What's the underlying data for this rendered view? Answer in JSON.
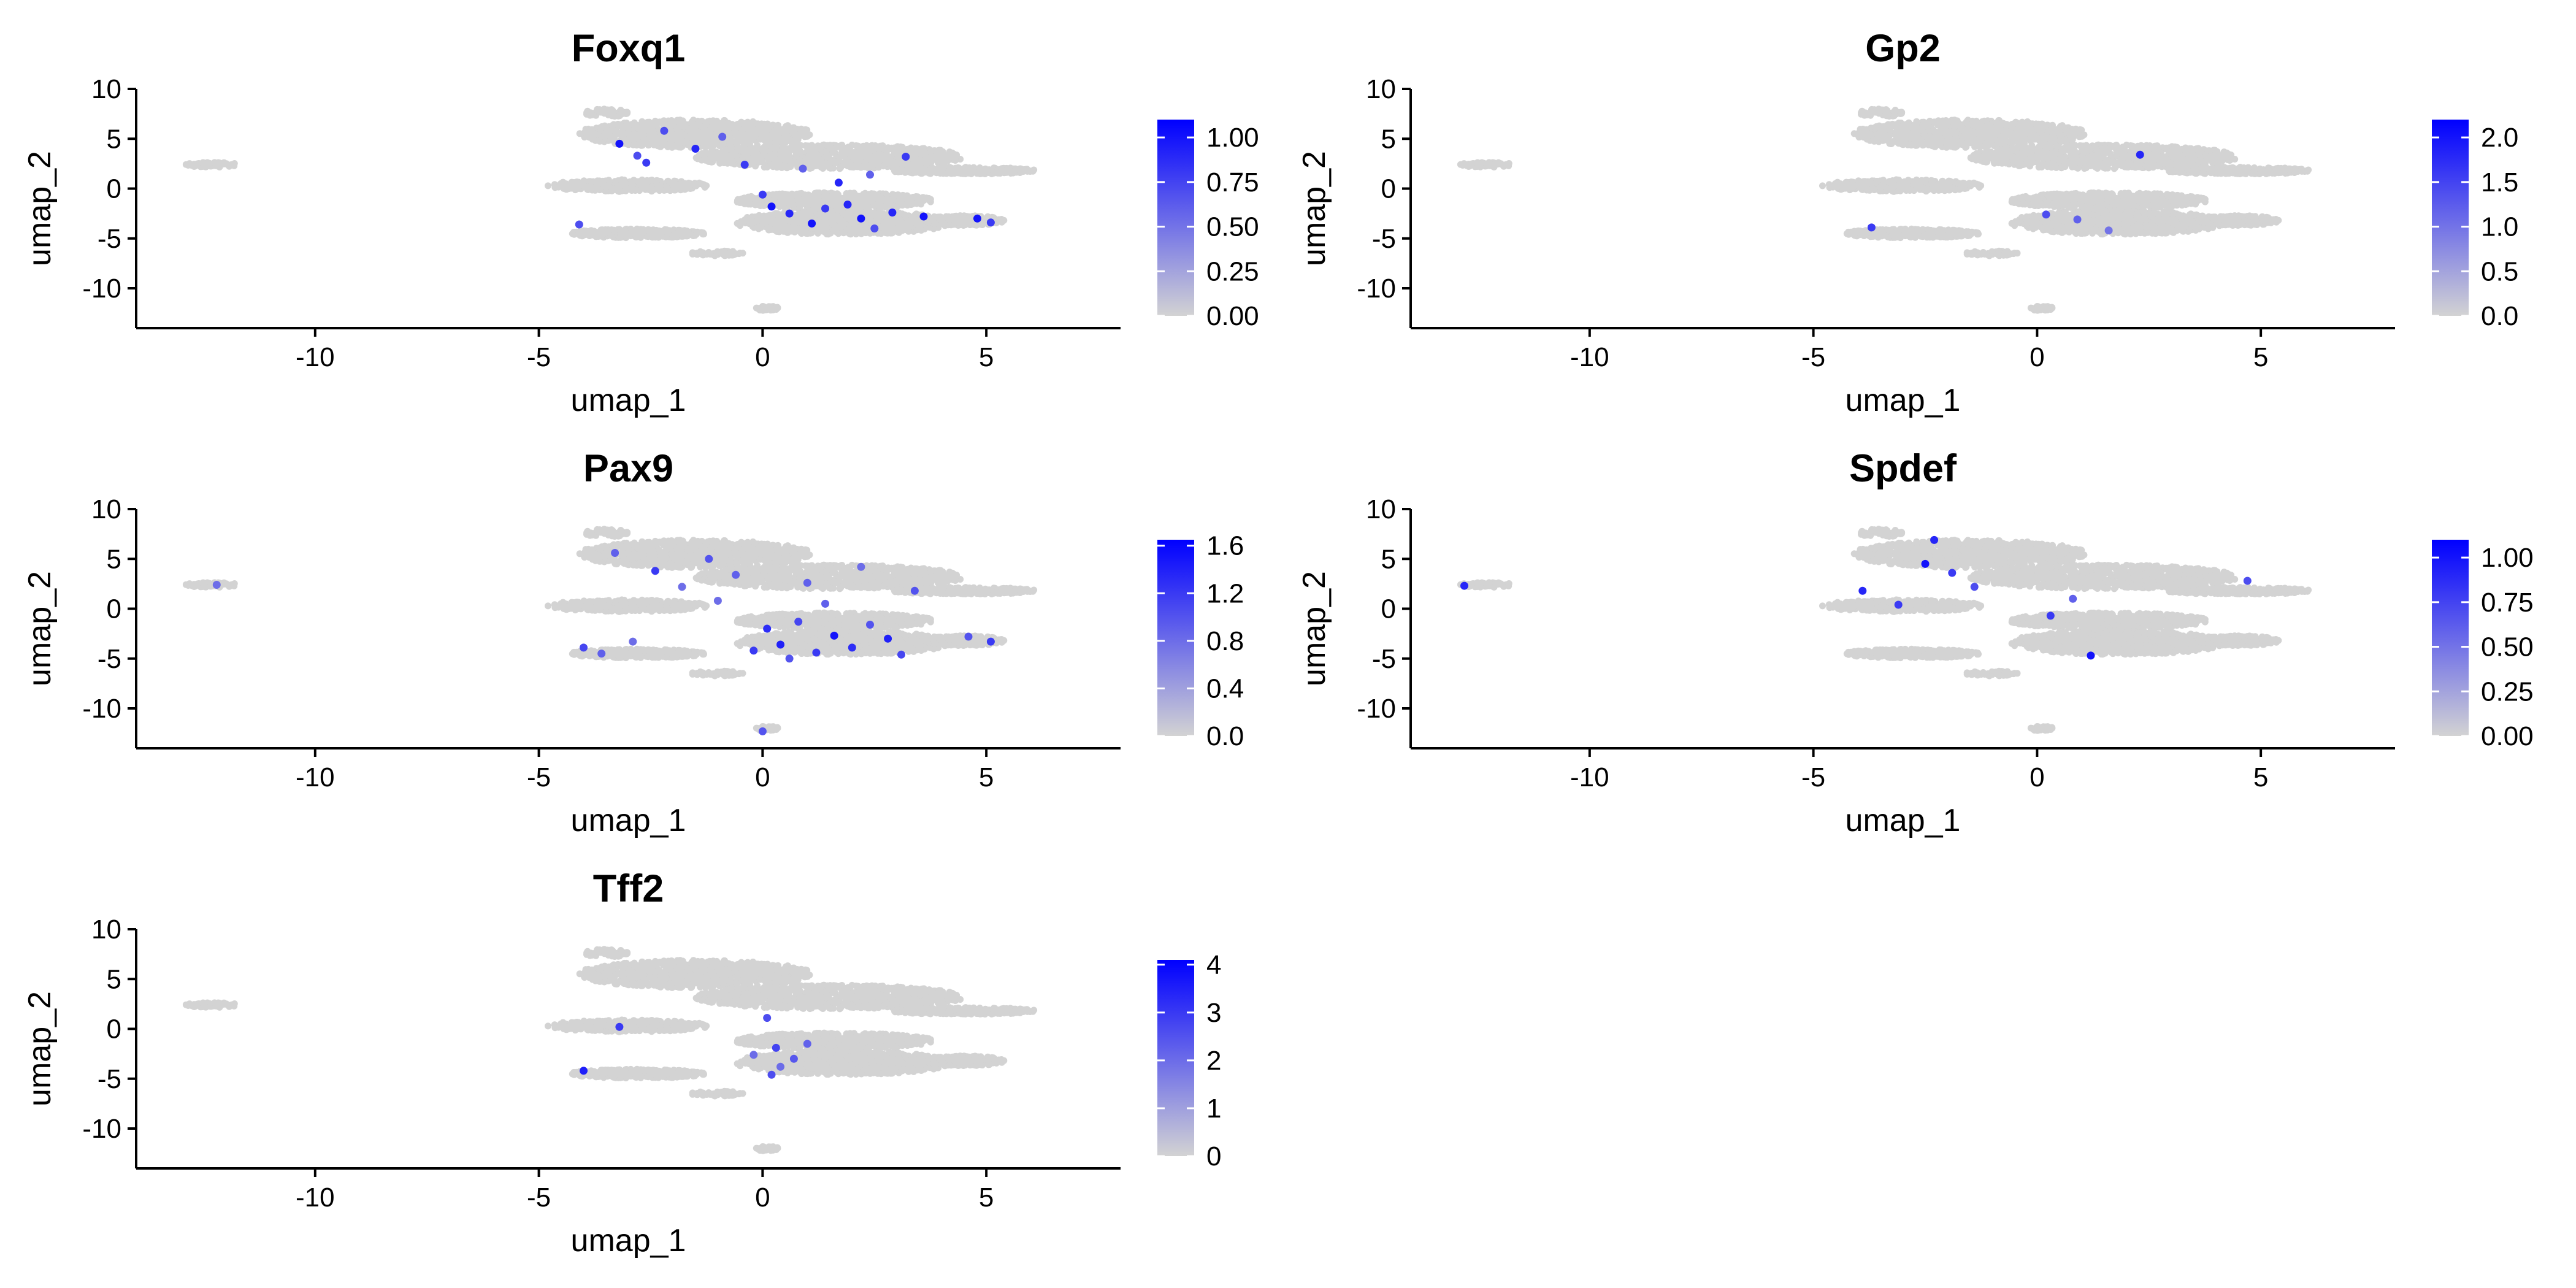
{
  "chart_data": [
    {
      "type": "scatter",
      "title": "Foxq1",
      "xlabel": "umap_1",
      "ylabel": "umap_2",
      "xlim": [
        -14,
        8
      ],
      "ylim": [
        -14,
        10
      ],
      "x_ticks": [
        "-10",
        "-5",
        "0",
        "5"
      ],
      "y_ticks": [
        "10",
        "5",
        "0",
        "-5",
        "-10"
      ],
      "legend": {
        "position": "right",
        "low_color": "#d3d3d3",
        "high_color": "#0000ff",
        "min": 0,
        "max": 1.1,
        "ticks": [
          "1.00",
          "0.75",
          "0.50",
          "0.25",
          "0.00"
        ]
      },
      "highlights": [
        [
          -3.2,
          4.5,
          1.0
        ],
        [
          -2.6,
          2.6,
          0.8
        ],
        [
          -2.2,
          5.8,
          0.7
        ],
        [
          -1.5,
          4.0,
          0.9
        ],
        [
          -0.9,
          5.2,
          0.6
        ],
        [
          -0.4,
          2.4,
          0.8
        ],
        [
          0.2,
          -1.8,
          1.0
        ],
        [
          0.6,
          -2.5,
          0.9
        ],
        [
          1.1,
          -3.5,
          1.0
        ],
        [
          1.4,
          -2.0,
          0.8
        ],
        [
          1.9,
          -1.6,
          0.9
        ],
        [
          2.2,
          -3.0,
          1.0
        ],
        [
          2.5,
          -4.0,
          0.7
        ],
        [
          2.9,
          -2.4,
          0.9
        ],
        [
          3.2,
          3.2,
          0.8
        ],
        [
          4.8,
          -3.0,
          1.0
        ],
        [
          5.1,
          -3.4,
          0.8
        ],
        [
          -4.1,
          -3.6,
          0.7
        ],
        [
          0.9,
          2.0,
          0.6
        ],
        [
          1.7,
          0.6,
          0.9
        ],
        [
          -2.8,
          3.3,
          0.7
        ],
        [
          2.4,
          1.4,
          0.6
        ],
        [
          0.0,
          -0.6,
          0.8
        ],
        [
          3.6,
          -2.8,
          1.0
        ]
      ]
    },
    {
      "type": "scatter",
      "title": "Gp2",
      "xlabel": "umap_1",
      "ylabel": "umap_2",
      "xlim": [
        -14,
        8
      ],
      "ylim": [
        -14,
        10
      ],
      "x_ticks": [
        "-10",
        "-5",
        "0",
        "5"
      ],
      "y_ticks": [
        "10",
        "5",
        "0",
        "-5",
        "-10"
      ],
      "legend": {
        "position": "right",
        "low_color": "#d3d3d3",
        "high_color": "#0000ff",
        "min": 0,
        "max": 2.2,
        "ticks": [
          "2.0",
          "1.5",
          "1.0",
          "0.5",
          "0.0"
        ]
      },
      "highlights": [
        [
          -3.7,
          -3.9,
          1.6
        ],
        [
          0.2,
          -2.6,
          1.4
        ],
        [
          0.9,
          -3.1,
          1.2
        ],
        [
          2.3,
          3.4,
          1.8
        ],
        [
          1.6,
          -4.2,
          1.0
        ]
      ]
    },
    {
      "type": "scatter",
      "title": "Pax9",
      "xlabel": "umap_1",
      "ylabel": "umap_2",
      "xlim": [
        -14,
        8
      ],
      "ylim": [
        -14,
        10
      ],
      "x_ticks": [
        "-10",
        "-5",
        "0",
        "5"
      ],
      "y_ticks": [
        "10",
        "5",
        "0",
        "-5",
        "-10"
      ],
      "legend": {
        "position": "right",
        "low_color": "#d3d3d3",
        "high_color": "#0000ff",
        "min": 0,
        "max": 1.65,
        "ticks": [
          "1.6",
          "1.2",
          "0.8",
          "0.4",
          "0.0"
        ]
      },
      "highlights": [
        [
          -12.2,
          2.4,
          0.8
        ],
        [
          -3.3,
          5.6,
          0.9
        ],
        [
          -2.4,
          3.8,
          1.2
        ],
        [
          -1.8,
          2.2,
          0.8
        ],
        [
          -1.2,
          5.0,
          1.0
        ],
        [
          -0.6,
          3.4,
          0.9
        ],
        [
          0.1,
          -2.0,
          1.3
        ],
        [
          0.4,
          -3.6,
          1.4
        ],
        [
          0.8,
          -1.3,
          1.1
        ],
        [
          1.2,
          -4.4,
          1.2
        ],
        [
          1.6,
          -2.7,
          1.5
        ],
        [
          2.0,
          -3.9,
          1.3
        ],
        [
          2.4,
          -1.6,
          1.0
        ],
        [
          2.8,
          -3.0,
          1.4
        ],
        [
          3.1,
          -4.6,
          1.1
        ],
        [
          0.6,
          -5.0,
          1.0
        ],
        [
          -0.2,
          -4.2,
          1.2
        ],
        [
          1.0,
          2.6,
          0.9
        ],
        [
          2.2,
          4.2,
          0.8
        ],
        [
          -4.0,
          -3.9,
          1.1
        ],
        [
          -3.6,
          -4.5,
          0.9
        ],
        [
          4.6,
          -2.8,
          1.0
        ],
        [
          5.1,
          -3.3,
          1.2
        ],
        [
          -2.9,
          -3.3,
          0.8
        ],
        [
          0.0,
          -12.3,
          1.0
        ],
        [
          1.4,
          0.5,
          0.9
        ],
        [
          -1.0,
          0.8,
          0.8
        ],
        [
          3.4,
          1.8,
          1.0
        ]
      ]
    },
    {
      "type": "scatter",
      "title": "Spdef",
      "xlabel": "umap_1",
      "ylabel": "umap_2",
      "xlim": [
        -14,
        8
      ],
      "ylim": [
        -14,
        10
      ],
      "x_ticks": [
        "-10",
        "-5",
        "0",
        "5"
      ],
      "y_ticks": [
        "10",
        "5",
        "0",
        "-5",
        "-10"
      ],
      "legend": {
        "position": "right",
        "low_color": "#d3d3d3",
        "high_color": "#0000ff",
        "min": 0,
        "max": 1.1,
        "ticks": [
          "1.00",
          "0.75",
          "0.50",
          "0.25",
          "0.00"
        ]
      },
      "highlights": [
        [
          -12.8,
          2.3,
          0.9
        ],
        [
          -3.9,
          1.8,
          0.9
        ],
        [
          -3.1,
          0.4,
          0.8
        ],
        [
          -2.5,
          4.5,
          1.0
        ],
        [
          -1.9,
          3.6,
          0.8
        ],
        [
          -2.3,
          6.9,
          0.9
        ],
        [
          -1.4,
          2.2,
          0.7
        ],
        [
          0.3,
          -0.7,
          0.8
        ],
        [
          1.2,
          -4.7,
          1.0
        ],
        [
          4.7,
          2.8,
          0.7
        ],
        [
          0.8,
          1.0,
          0.6
        ]
      ]
    },
    {
      "type": "scatter",
      "title": "Tff2",
      "xlabel": "umap_1",
      "ylabel": "umap_2",
      "xlim": [
        -14,
        8
      ],
      "ylim": [
        -14,
        10
      ],
      "x_ticks": [
        "-10",
        "-5",
        "0",
        "5"
      ],
      "y_ticks": [
        "10",
        "5",
        "0",
        "-5",
        "-10"
      ],
      "legend": {
        "position": "right",
        "low_color": "#d3d3d3",
        "high_color": "#0000ff",
        "min": 0,
        "max": 4.1,
        "ticks": [
          "4",
          "3",
          "2",
          "1",
          "0"
        ]
      },
      "highlights": [
        [
          -4.0,
          -4.2,
          3.5
        ],
        [
          -3.2,
          0.2,
          3.0
        ],
        [
          0.1,
          1.1,
          2.6
        ],
        [
          0.3,
          -1.9,
          2.8
        ],
        [
          0.7,
          -3.0,
          2.4
        ],
        [
          0.4,
          -3.8,
          2.0
        ],
        [
          1.0,
          -1.5,
          2.2
        ],
        [
          0.2,
          -4.6,
          2.6
        ],
        [
          -0.2,
          -2.6,
          2.0
        ]
      ]
    }
  ]
}
